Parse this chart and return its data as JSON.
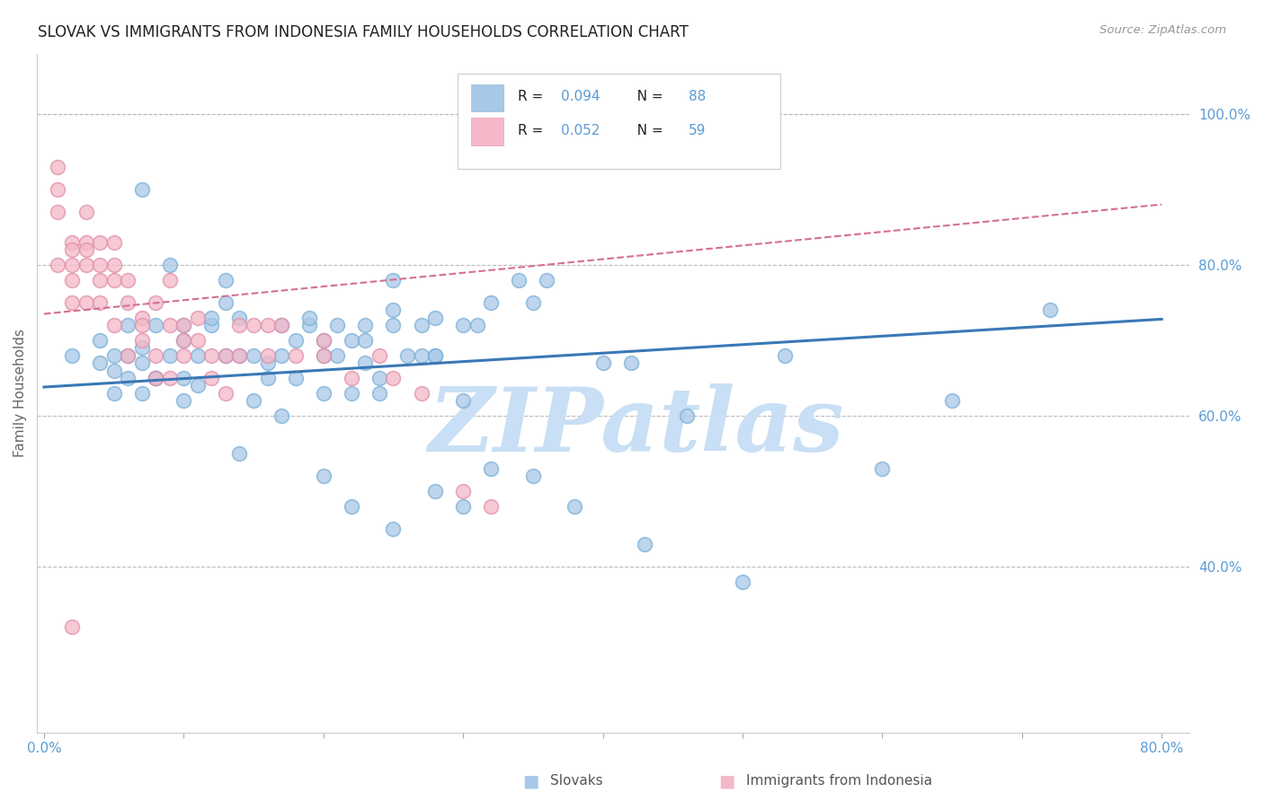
{
  "title": "SLOVAK VS IMMIGRANTS FROM INDONESIA FAMILY HOUSEHOLDS CORRELATION CHART",
  "source": "Source: ZipAtlas.com",
  "ylabel": "Family Households",
  "xlim": [
    -0.005,
    0.82
  ],
  "ylim": [
    0.18,
    1.08
  ],
  "xticks": [
    0.0,
    0.1,
    0.2,
    0.3,
    0.4,
    0.5,
    0.6,
    0.7,
    0.8
  ],
  "xtick_labels": [
    "0.0%",
    "",
    "",
    "",
    "",
    "",
    "",
    "",
    "80.0%"
  ],
  "yticks_right": [
    0.4,
    0.6,
    0.8,
    1.0
  ],
  "ytick_labels_right": [
    "40.0%",
    "60.0%",
    "80.0%",
    "100.0%"
  ],
  "legend_blue_label": "Slovaks",
  "legend_pink_label": "Immigrants from Indonesia",
  "legend_blue_r": "0.094",
  "legend_blue_n": "88",
  "legend_pink_r": "0.052",
  "legend_pink_n": "59",
  "blue_color": "#a8c8e8",
  "pink_color": "#f4b8c8",
  "blue_line_color": "#3a78b5",
  "pink_line_color": "#d47090",
  "title_color": "#222222",
  "axis_color": "#5b9bd5",
  "grid_color": "#bbbbbb",
  "watermark": "ZIPatlas",
  "watermark_color": "#c8dff5",
  "blue_scatter_x": [
    0.02,
    0.04,
    0.04,
    0.05,
    0.05,
    0.05,
    0.06,
    0.06,
    0.06,
    0.07,
    0.07,
    0.07,
    0.07,
    0.08,
    0.08,
    0.08,
    0.09,
    0.09,
    0.1,
    0.1,
    0.1,
    0.1,
    0.11,
    0.11,
    0.12,
    0.12,
    0.13,
    0.13,
    0.13,
    0.14,
    0.14,
    0.15,
    0.15,
    0.16,
    0.16,
    0.17,
    0.17,
    0.17,
    0.18,
    0.18,
    0.19,
    0.19,
    0.2,
    0.2,
    0.2,
    0.21,
    0.21,
    0.22,
    0.22,
    0.23,
    0.23,
    0.23,
    0.24,
    0.24,
    0.25,
    0.25,
    0.25,
    0.26,
    0.27,
    0.27,
    0.28,
    0.28,
    0.28,
    0.3,
    0.3,
    0.31,
    0.32,
    0.34,
    0.35,
    0.36,
    0.14,
    0.25,
    0.28,
    0.35,
    0.43,
    0.5,
    0.53,
    0.6,
    0.65,
    0.72,
    0.2,
    0.22,
    0.3,
    0.32,
    0.38,
    0.4,
    0.42,
    0.46
  ],
  "blue_scatter_y": [
    0.68,
    0.7,
    0.67,
    0.63,
    0.68,
    0.66,
    0.72,
    0.65,
    0.68,
    0.9,
    0.69,
    0.63,
    0.67,
    0.65,
    0.72,
    0.65,
    0.8,
    0.68,
    0.65,
    0.62,
    0.7,
    0.72,
    0.68,
    0.64,
    0.72,
    0.73,
    0.68,
    0.75,
    0.78,
    0.68,
    0.73,
    0.62,
    0.68,
    0.65,
    0.67,
    0.68,
    0.6,
    0.72,
    0.7,
    0.65,
    0.72,
    0.73,
    0.7,
    0.63,
    0.68,
    0.68,
    0.72,
    0.63,
    0.7,
    0.72,
    0.67,
    0.7,
    0.65,
    0.63,
    0.72,
    0.74,
    0.78,
    0.68,
    0.72,
    0.68,
    0.68,
    0.73,
    0.5,
    0.72,
    0.62,
    0.72,
    0.75,
    0.78,
    0.75,
    0.78,
    0.55,
    0.45,
    0.68,
    0.52,
    0.43,
    0.38,
    0.68,
    0.53,
    0.62,
    0.74,
    0.52,
    0.48,
    0.48,
    0.53,
    0.48,
    0.67,
    0.67,
    0.6
  ],
  "pink_scatter_x": [
    0.01,
    0.01,
    0.01,
    0.01,
    0.02,
    0.02,
    0.02,
    0.02,
    0.02,
    0.03,
    0.03,
    0.03,
    0.03,
    0.03,
    0.04,
    0.04,
    0.04,
    0.04,
    0.05,
    0.05,
    0.05,
    0.05,
    0.06,
    0.06,
    0.06,
    0.07,
    0.07,
    0.07,
    0.08,
    0.08,
    0.08,
    0.09,
    0.09,
    0.09,
    0.1,
    0.1,
    0.1,
    0.11,
    0.11,
    0.12,
    0.12,
    0.13,
    0.13,
    0.14,
    0.14,
    0.15,
    0.16,
    0.16,
    0.17,
    0.18,
    0.2,
    0.2,
    0.22,
    0.24,
    0.25,
    0.27,
    0.3,
    0.32,
    0.02
  ],
  "pink_scatter_y": [
    0.8,
    0.87,
    0.9,
    0.93,
    0.83,
    0.82,
    0.8,
    0.78,
    0.75,
    0.87,
    0.83,
    0.8,
    0.75,
    0.82,
    0.83,
    0.78,
    0.8,
    0.75,
    0.83,
    0.78,
    0.72,
    0.8,
    0.75,
    0.78,
    0.68,
    0.73,
    0.7,
    0.72,
    0.75,
    0.68,
    0.65,
    0.72,
    0.78,
    0.65,
    0.72,
    0.7,
    0.68,
    0.7,
    0.73,
    0.68,
    0.65,
    0.68,
    0.63,
    0.72,
    0.68,
    0.72,
    0.72,
    0.68,
    0.72,
    0.68,
    0.7,
    0.68,
    0.65,
    0.68,
    0.65,
    0.63,
    0.5,
    0.48,
    0.32
  ],
  "blue_trendline_x": [
    0.0,
    0.8
  ],
  "blue_trendline_y": [
    0.638,
    0.728
  ],
  "pink_trendline_x": [
    0.0,
    0.8
  ],
  "pink_trendline_y": [
    0.735,
    0.88
  ]
}
